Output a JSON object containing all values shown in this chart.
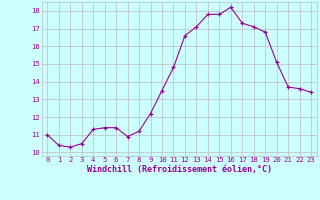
{
  "x": [
    0,
    1,
    2,
    3,
    4,
    5,
    6,
    7,
    8,
    9,
    10,
    11,
    12,
    13,
    14,
    15,
    16,
    17,
    18,
    19,
    20,
    21,
    22,
    23
  ],
  "y": [
    11.0,
    10.4,
    10.3,
    10.5,
    11.3,
    11.4,
    11.4,
    10.9,
    11.2,
    12.2,
    13.5,
    14.8,
    16.6,
    17.1,
    17.8,
    17.8,
    18.2,
    17.3,
    17.1,
    16.8,
    15.1,
    13.7,
    13.6,
    13.4
  ],
  "xlabel": "Windchill (Refroidissement éolien,°C)",
  "xlim": [
    -0.5,
    23.5
  ],
  "ylim": [
    9.8,
    18.5
  ],
  "yticks": [
    10,
    11,
    12,
    13,
    14,
    15,
    16,
    17,
    18
  ],
  "xticks": [
    0,
    1,
    2,
    3,
    4,
    5,
    6,
    7,
    8,
    9,
    10,
    11,
    12,
    13,
    14,
    15,
    16,
    17,
    18,
    19,
    20,
    21,
    22,
    23
  ],
  "line_color": "#990099",
  "marker": "+",
  "bg_color": "#ccffff",
  "grid_color": "#bbbbbb",
  "label_color": "#990099",
  "tick_color": "#990099",
  "tick_fontsize": 5.2,
  "xlabel_fontsize": 6.0
}
